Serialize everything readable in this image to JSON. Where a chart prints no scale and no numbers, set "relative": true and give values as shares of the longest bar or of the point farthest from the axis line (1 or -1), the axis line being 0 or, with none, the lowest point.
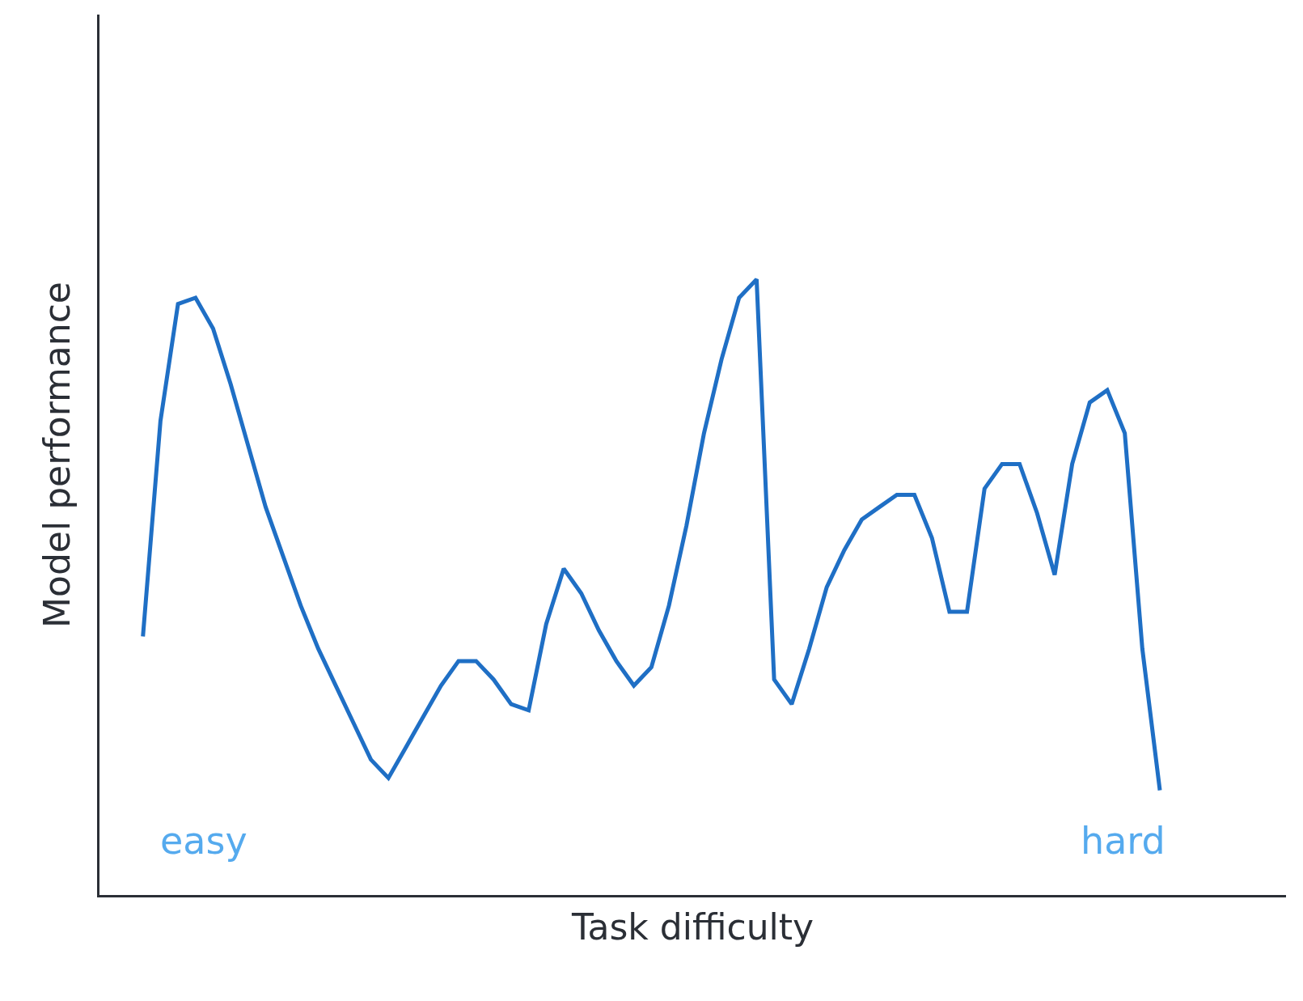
{
  "chart_data": {
    "type": "line",
    "relative": true,
    "xlabel": "Task difficulty",
    "ylabel": "Model performance",
    "annotations": [
      "easy",
      "hard"
    ],
    "categories": [
      null,
      null,
      null,
      null,
      null,
      null,
      null,
      null,
      null,
      null,
      null,
      null,
      null,
      null,
      null,
      null,
      null,
      null,
      null,
      null,
      null,
      null,
      null,
      null,
      null,
      null,
      null,
      null,
      null,
      null,
      null,
      null,
      null,
      null,
      null,
      null,
      null,
      null,
      null,
      null,
      null,
      null,
      null,
      null,
      null,
      null,
      null,
      null,
      null,
      null,
      null,
      null,
      null,
      null,
      null,
      null,
      null,
      null,
      null
    ],
    "series": [
      {
        "color": "#1f6fc5",
        "values": [
          0.42,
          0.77,
          0.96,
          0.97,
          0.92,
          0.83,
          0.73,
          0.63,
          0.55,
          0.47,
          0.4,
          0.34,
          0.28,
          0.22,
          0.19,
          0.24,
          0.29,
          0.34,
          0.38,
          0.38,
          0.35,
          0.31,
          0.3,
          0.44,
          0.53,
          0.49,
          0.43,
          0.38,
          0.34,
          0.37,
          0.47,
          0.6,
          0.75,
          0.87,
          0.97,
          1.0,
          0.35,
          0.31,
          0.4,
          0.5,
          0.56,
          0.61,
          0.63,
          0.65,
          0.65,
          0.58,
          0.46,
          0.46,
          0.66,
          0.7,
          0.7,
          0.62,
          0.52,
          0.7,
          0.8,
          0.82,
          0.75,
          0.4,
          0.17
        ]
      }
    ]
  }
}
